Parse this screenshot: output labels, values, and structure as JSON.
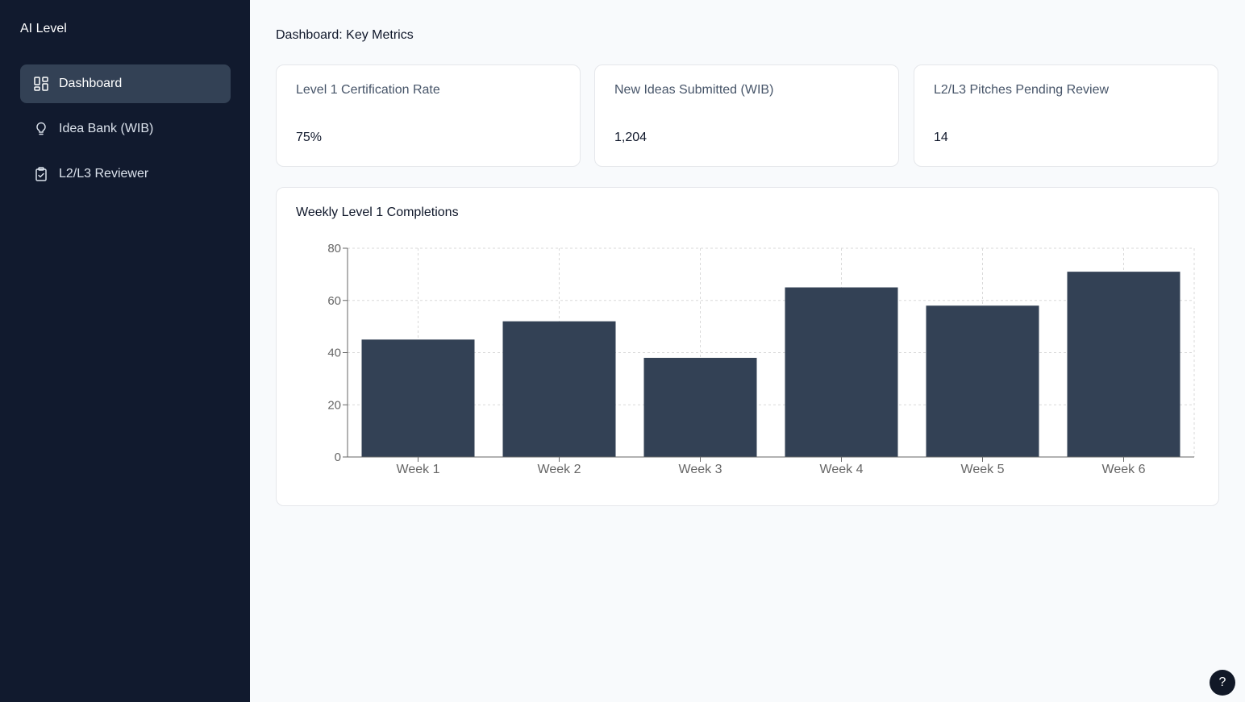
{
  "app": {
    "title": "AI Level"
  },
  "sidebar": {
    "items": [
      {
        "label": "Dashboard",
        "icon": "dashboard-grid-icon",
        "active": true
      },
      {
        "label": "Idea Bank (WIB)",
        "icon": "lightbulb-icon",
        "active": false
      },
      {
        "label": "L2/L3 Reviewer",
        "icon": "clipboard-check-icon",
        "active": false
      }
    ]
  },
  "page": {
    "title": "Dashboard: Key Metrics"
  },
  "kpis": [
    {
      "label": "Level 1 Certification Rate",
      "value": "75%"
    },
    {
      "label": "New Ideas Submitted (WIB)",
      "value": "1,204"
    },
    {
      "label": "L2/L3 Pitches Pending Review",
      "value": "14"
    }
  ],
  "chart_card": {
    "title": "Weekly Level 1 Completions"
  },
  "chart_data": {
    "type": "bar",
    "title": "Weekly Level 1 Completions",
    "categories": [
      "Week 1",
      "Week 2",
      "Week 3",
      "Week 4",
      "Week 5",
      "Week 6"
    ],
    "values": [
      45,
      52,
      38,
      65,
      58,
      71
    ],
    "ylim": [
      0,
      80
    ],
    "yticks": [
      0,
      20,
      40,
      60,
      80
    ],
    "grid": true,
    "bar_color": "#334155"
  },
  "help": {
    "label": "?"
  },
  "colors": {
    "sidebar_bg": "#111a2e",
    "active_item_bg": "#334155",
    "page_bg": "#f8fafc"
  }
}
